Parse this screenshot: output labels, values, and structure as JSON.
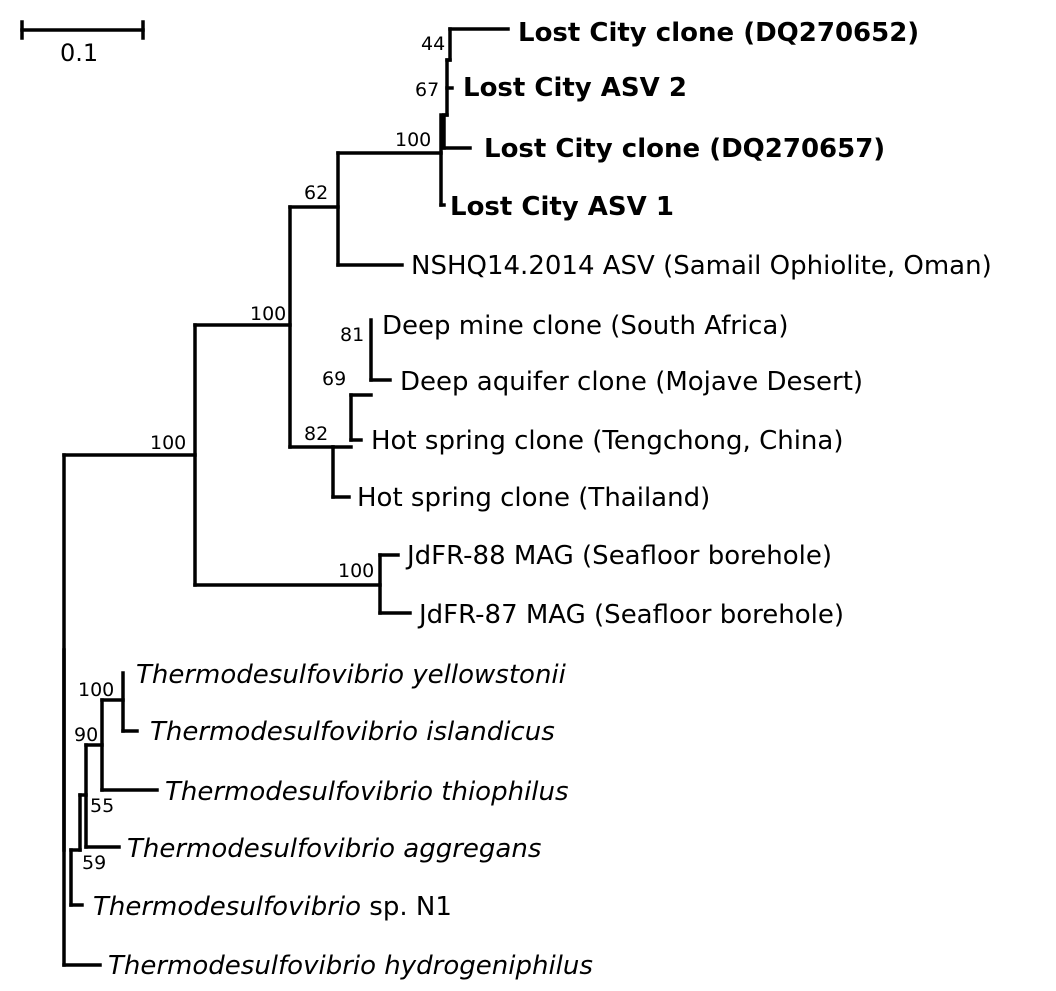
{
  "scale_bar": {
    "label": "0.1"
  },
  "leaves": [
    {
      "id": "lc_dq270652",
      "text": "Lost City clone (DQ270652)",
      "style": "bold"
    },
    {
      "id": "lc_asv2",
      "text": "Lost City ASV 2",
      "style": "bold"
    },
    {
      "id": "lc_dq270657",
      "text": "Lost City clone (DQ270657)",
      "style": "bold"
    },
    {
      "id": "lc_asv1",
      "text": "Lost City ASV 1",
      "style": "bold"
    },
    {
      "id": "nshq",
      "text": "NSHQ14.2014 ASV (Samail Ophiolite, Oman)",
      "style": "normal"
    },
    {
      "id": "deep_mine",
      "text": "Deep mine clone (South Africa)",
      "style": "normal"
    },
    {
      "id": "deep_aquifer",
      "text": "Deep aquifer clone (Mojave Desert)",
      "style": "normal"
    },
    {
      "id": "hs_tengchong",
      "text": "Hot spring clone (Tengchong, China)",
      "style": "normal"
    },
    {
      "id": "hs_thailand",
      "text": "Hot spring clone (Thailand)",
      "style": "normal"
    },
    {
      "id": "jdfr88",
      "text": "JdFR-88 MAG (Seafloor borehole)",
      "style": "normal"
    },
    {
      "id": "jdfr87",
      "text": "JdFR-87 MAG (Seafloor borehole)",
      "style": "normal"
    },
    {
      "id": "t_yellowstonii",
      "text": "Thermodesulfovibrio yellowstonii",
      "style": "italic"
    },
    {
      "id": "t_islandicus",
      "text": "Thermodesulfovibrio islandicus",
      "style": "italic"
    },
    {
      "id": "t_thiophilus",
      "text": "Thermodesulfovibrio thiophilus",
      "style": "italic"
    },
    {
      "id": "t_aggregans",
      "text": "Thermodesulfovibrio aggregans",
      "style": "italic"
    },
    {
      "id": "t_spn1",
      "text": "Thermodesulfovibrio",
      "suffix": " sp. N1",
      "style": "italic"
    },
    {
      "id": "t_hydrogeniphilus",
      "text": "Thermodesulfovibrio hydrogeniphilus",
      "style": "italic"
    }
  ],
  "support_values": {
    "lost_city_top": "44",
    "lost_city_asv2": "67",
    "lost_city_clade": "100",
    "lost_city_nshq": "62",
    "serpentinite_clade": "100",
    "deep_mine_aquifer": "81",
    "deep_tengchong": "69",
    "continental_clade": "82",
    "seafloor": "100",
    "ingroup": "100",
    "yellowstonii_islandicus": "100",
    "thermo_90": "90",
    "thiophilus": "55",
    "aggregans": "59"
  }
}
